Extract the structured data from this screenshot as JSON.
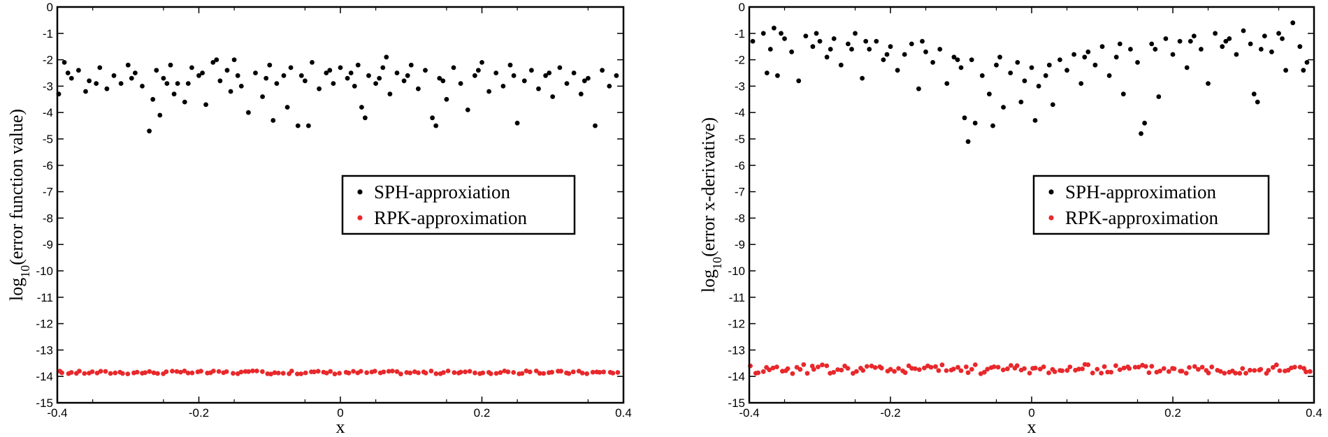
{
  "chart_data": [
    {
      "type": "scatter",
      "xlabel": "x",
      "ylabel": {
        "prefix": "log",
        "subscript": "10",
        "suffix": "(error function value)"
      },
      "xlim": [
        -0.4,
        0.4
      ],
      "ylim": [
        -15,
        0
      ],
      "x_ticks": [
        -0.4,
        -0.2,
        0,
        0.2,
        0.4
      ],
      "x_tick_labels": [
        "-0.4",
        "-0.2",
        "0",
        "0.2",
        "0.4"
      ],
      "y_ticks": [
        0,
        -1,
        -2,
        -3,
        -4,
        -5,
        -6,
        -7,
        -8,
        -9,
        -10,
        -11,
        -12,
        -13,
        -14,
        -15
      ],
      "y_tick_labels": [
        "0",
        "-1",
        "-2",
        "-3",
        "-4",
        "-5",
        "-6",
        "-7",
        "-8",
        "-9",
        "-10",
        "-11",
        "-12",
        "-13",
        "-14",
        "-15"
      ],
      "grid": false,
      "legend_position": "right-center",
      "series": [
        {
          "name": "SPH-approxiation",
          "color": "#000000",
          "points": [
            [
              -0.398,
              -3.3
            ],
            [
              -0.39,
              -2.1
            ],
            [
              -0.38,
              -2.7
            ],
            [
              -0.37,
              -2.4
            ],
            [
              -0.36,
              -3.2
            ],
            [
              -0.355,
              -2.8
            ],
            [
              -0.34,
              -2.3
            ],
            [
              -0.33,
              -3.1
            ],
            [
              -0.32,
              -2.6
            ],
            [
              -0.31,
              -2.9
            ],
            [
              -0.3,
              -2.2
            ],
            [
              -0.29,
              -2.5
            ],
            [
              -0.28,
              -3.0
            ],
            [
              -0.27,
              -4.7
            ],
            [
              -0.265,
              -3.5
            ],
            [
              -0.26,
              -2.4
            ],
            [
              -0.255,
              -4.1
            ],
            [
              -0.25,
              -2.7
            ],
            [
              -0.24,
              -2.2
            ],
            [
              -0.235,
              -3.3
            ],
            [
              -0.23,
              -2.9
            ],
            [
              -0.22,
              -3.6
            ],
            [
              -0.21,
              -2.3
            ],
            [
              -0.2,
              -2.6
            ],
            [
              -0.19,
              -3.7
            ],
            [
              -0.18,
              -2.1
            ],
            [
              -0.17,
              -2.8
            ],
            [
              -0.16,
              -2.4
            ],
            [
              -0.155,
              -3.2
            ],
            [
              -0.15,
              -2.0
            ],
            [
              -0.14,
              -3.0
            ],
            [
              -0.13,
              -4.0
            ],
            [
              -0.12,
              -2.5
            ],
            [
              -0.11,
              -3.4
            ],
            [
              -0.1,
              -2.2
            ],
            [
              -0.095,
              -4.3
            ],
            [
              -0.09,
              -2.9
            ],
            [
              -0.08,
              -2.6
            ],
            [
              -0.075,
              -3.8
            ],
            [
              -0.07,
              -2.3
            ],
            [
              -0.06,
              -4.5
            ],
            [
              -0.05,
              -2.8
            ],
            [
              -0.045,
              -4.5
            ],
            [
              -0.04,
              -2.1
            ],
            [
              -0.03,
              -3.1
            ],
            [
              -0.02,
              -2.5
            ],
            [
              -0.01,
              -2.9
            ],
            [
              0.0,
              -2.3
            ],
            [
              0.01,
              -2.7
            ],
            [
              0.02,
              -3.0
            ],
            [
              0.025,
              -2.2
            ],
            [
              0.03,
              -3.8
            ],
            [
              0.035,
              -4.2
            ],
            [
              0.04,
              -2.6
            ],
            [
              0.05,
              -2.9
            ],
            [
              0.06,
              -2.3
            ],
            [
              0.07,
              -3.3
            ],
            [
              0.08,
              -2.5
            ],
            [
              0.09,
              -2.8
            ],
            [
              0.1,
              -2.2
            ],
            [
              0.11,
              -3.1
            ],
            [
              0.12,
              -2.4
            ],
            [
              0.13,
              -4.2
            ],
            [
              0.135,
              -4.5
            ],
            [
              0.14,
              -2.7
            ],
            [
              0.15,
              -3.5
            ],
            [
              0.16,
              -2.3
            ],
            [
              0.17,
              -2.9
            ],
            [
              0.18,
              -3.9
            ],
            [
              0.19,
              -2.6
            ],
            [
              0.2,
              -2.1
            ],
            [
              0.21,
              -3.2
            ],
            [
              0.22,
              -2.5
            ],
            [
              0.23,
              -3.0
            ],
            [
              0.24,
              -2.2
            ],
            [
              0.25,
              -4.4
            ],
            [
              0.26,
              -2.8
            ],
            [
              0.27,
              -2.4
            ],
            [
              0.28,
              -3.1
            ],
            [
              0.29,
              -2.6
            ],
            [
              0.3,
              -3.4
            ],
            [
              0.31,
              -2.3
            ],
            [
              0.32,
              -2.9
            ],
            [
              0.33,
              -2.5
            ],
            [
              0.34,
              -3.3
            ],
            [
              0.35,
              -2.7
            ],
            [
              0.36,
              -4.5
            ],
            [
              0.37,
              -2.4
            ],
            [
              0.38,
              -3.0
            ],
            [
              0.39,
              -2.6
            ],
            [
              -0.385,
              -2.5
            ],
            [
              -0.345,
              -2.9
            ],
            [
              -0.295,
              -2.7
            ],
            [
              -0.245,
              -2.9
            ],
            [
              -0.195,
              -2.5
            ],
            [
              -0.145,
              -2.6
            ],
            [
              -0.105,
              -2.7
            ],
            [
              -0.055,
              -2.6
            ],
            [
              -0.015,
              -2.4
            ],
            [
              0.015,
              -2.5
            ],
            [
              0.055,
              -2.7
            ],
            [
              0.095,
              -2.6
            ],
            [
              0.145,
              -2.8
            ],
            [
              0.195,
              -2.4
            ],
            [
              0.245,
              -2.6
            ],
            [
              0.295,
              -2.5
            ],
            [
              0.345,
              -2.8
            ],
            [
              -0.215,
              -2.9
            ],
            [
              0.065,
              -1.9
            ],
            [
              -0.175,
              -2.0
            ]
          ]
        },
        {
          "name": "RPK-approximation",
          "color": "#e8282b",
          "y_constant": -13.85,
          "x_start": -0.398,
          "x_end": 0.392,
          "count": 130,
          "spread": 0.06
        }
      ]
    },
    {
      "type": "scatter",
      "xlabel": "x",
      "ylabel": {
        "prefix": "log",
        "subscript": "10",
        "suffix": "(error x-derivative)"
      },
      "xlim": [
        -0.4,
        0.4
      ],
      "ylim": [
        -15,
        0
      ],
      "x_ticks": [
        -0.4,
        -0.2,
        0,
        0.2,
        0.4
      ],
      "x_tick_labels": [
        "-0.4",
        "-0.2",
        "0",
        "0.2",
        "0.4"
      ],
      "y_ticks": [
        0,
        -1,
        -2,
        -3,
        -4,
        -5,
        -6,
        -7,
        -8,
        -9,
        -10,
        -11,
        -12,
        -13,
        -14,
        -15
      ],
      "y_tick_labels": [
        "0",
        "-1",
        "-2",
        "-3",
        "-4",
        "-5",
        "-6",
        "-7",
        "-8",
        "-9",
        "-10",
        "-11",
        "-12",
        "-13",
        "-14",
        "-15"
      ],
      "grid": false,
      "legend_position": "right-center",
      "series": [
        {
          "name": "SPH-approximation",
          "color": "#000000",
          "points": [
            [
              -0.395,
              -1.3
            ],
            [
              -0.38,
              -1.0
            ],
            [
              -0.37,
              -1.6
            ],
            [
              -0.365,
              -0.8
            ],
            [
              -0.36,
              -2.6
            ],
            [
              -0.35,
              -1.2
            ],
            [
              -0.34,
              -1.7
            ],
            [
              -0.33,
              -2.8
            ],
            [
              -0.32,
              -1.1
            ],
            [
              -0.31,
              -1.5
            ],
            [
              -0.3,
              -1.3
            ],
            [
              -0.29,
              -1.9
            ],
            [
              -0.28,
              -1.2
            ],
            [
              -0.27,
              -2.2
            ],
            [
              -0.26,
              -1.4
            ],
            [
              -0.25,
              -1.0
            ],
            [
              -0.24,
              -2.7
            ],
            [
              -0.23,
              -1.6
            ],
            [
              -0.22,
              -1.3
            ],
            [
              -0.21,
              -2.0
            ],
            [
              -0.2,
              -1.5
            ],
            [
              -0.19,
              -2.4
            ],
            [
              -0.18,
              -1.8
            ],
            [
              -0.17,
              -1.4
            ],
            [
              -0.16,
              -3.1
            ],
            [
              -0.15,
              -1.7
            ],
            [
              -0.14,
              -2.1
            ],
            [
              -0.13,
              -1.6
            ],
            [
              -0.12,
              -2.9
            ],
            [
              -0.11,
              -1.9
            ],
            [
              -0.1,
              -2.3
            ],
            [
              -0.095,
              -4.2
            ],
            [
              -0.09,
              -5.1
            ],
            [
              -0.085,
              -2.0
            ],
            [
              -0.08,
              -4.4
            ],
            [
              -0.07,
              -2.6
            ],
            [
              -0.06,
              -3.3
            ],
            [
              -0.055,
              -4.5
            ],
            [
              -0.05,
              -2.2
            ],
            [
              -0.04,
              -3.8
            ],
            [
              -0.03,
              -2.5
            ],
            [
              -0.02,
              -2.1
            ],
            [
              -0.015,
              -3.6
            ],
            [
              -0.01,
              -2.8
            ],
            [
              0.0,
              -2.3
            ],
            [
              0.005,
              -4.3
            ],
            [
              0.01,
              -3.0
            ],
            [
              0.02,
              -2.6
            ],
            [
              0.03,
              -3.7
            ],
            [
              0.04,
              -2.0
            ],
            [
              0.05,
              -2.4
            ],
            [
              0.06,
              -1.8
            ],
            [
              0.07,
              -2.9
            ],
            [
              0.08,
              -1.7
            ],
            [
              0.09,
              -2.2
            ],
            [
              0.1,
              -1.5
            ],
            [
              0.11,
              -2.6
            ],
            [
              0.12,
              -1.9
            ],
            [
              0.13,
              -3.3
            ],
            [
              0.14,
              -1.6
            ],
            [
              0.15,
              -2.1
            ],
            [
              0.155,
              -4.8
            ],
            [
              0.16,
              -4.4
            ],
            [
              0.17,
              -1.4
            ],
            [
              0.18,
              -3.4
            ],
            [
              0.19,
              -1.2
            ],
            [
              0.2,
              -1.8
            ],
            [
              0.21,
              -1.3
            ],
            [
              0.22,
              -2.3
            ],
            [
              0.23,
              -1.1
            ],
            [
              0.24,
              -1.6
            ],
            [
              0.25,
              -2.9
            ],
            [
              0.26,
              -1.0
            ],
            [
              0.27,
              -1.5
            ],
            [
              0.28,
              -1.2
            ],
            [
              0.29,
              -1.8
            ],
            [
              0.3,
              -0.9
            ],
            [
              0.31,
              -1.4
            ],
            [
              0.315,
              -3.3
            ],
            [
              0.32,
              -3.6
            ],
            [
              0.33,
              -1.1
            ],
            [
              0.34,
              -1.7
            ],
            [
              0.35,
              -1.0
            ],
            [
              0.36,
              -2.4
            ],
            [
              0.37,
              -0.6
            ],
            [
              0.38,
              -1.5
            ],
            [
              0.39,
              -2.1
            ],
            [
              -0.375,
              -2.5
            ],
            [
              -0.355,
              -1.0
            ],
            [
              -0.305,
              -1.0
            ],
            [
              -0.255,
              -1.6
            ],
            [
              -0.205,
              -1.8
            ],
            [
              -0.155,
              -1.3
            ],
            [
              -0.105,
              -2.0
            ],
            [
              -0.045,
              -1.9
            ],
            [
              0.025,
              -2.2
            ],
            [
              0.075,
              -1.9
            ],
            [
              0.125,
              -1.4
            ],
            [
              0.175,
              -1.6
            ],
            [
              0.225,
              -1.3
            ],
            [
              0.275,
              -1.3
            ],
            [
              0.325,
              -1.6
            ],
            [
              0.355,
              -1.2
            ],
            [
              0.385,
              -2.4
            ],
            [
              -0.285,
              -1.6
            ],
            [
              -0.235,
              -1.3
            ]
          ]
        },
        {
          "name": "RPK-approximation",
          "color": "#e8282b",
          "y_constant": -13.72,
          "x_start": -0.397,
          "x_end": 0.395,
          "count": 150,
          "spread": 0.18
        }
      ]
    }
  ]
}
